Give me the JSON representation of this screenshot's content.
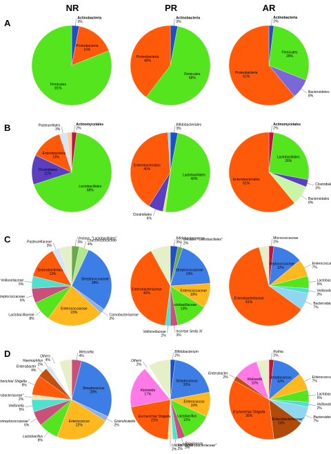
{
  "columns": [
    "NR",
    "PR",
    "AR"
  ],
  "panels": [
    "A",
    "B",
    "C",
    "D"
  ],
  "chart_data": [
    {
      "type": "pie",
      "panel": "A",
      "column": "NR",
      "slices": [
        {
          "label": "Actinobacteria",
          "value": 3,
          "pct": "3%",
          "color": "#1f4fc1",
          "bold": true
        },
        {
          "label": "Proteobacteria",
          "value": 16,
          "pct": "16%",
          "color": "#ff5a0a"
        },
        {
          "label": "Firmicutes",
          "value": 81,
          "pct": "81%",
          "color": "#55e51e"
        }
      ]
    },
    {
      "type": "pie",
      "panel": "A",
      "column": "PR",
      "slices": [
        {
          "label": "Actinobacteria",
          "value": 3,
          "pct": "3%",
          "color": "#1f4fc1",
          "bold": true
        },
        {
          "label": "Firmicutes",
          "value": 58,
          "pct": "58%",
          "color": "#55e51e"
        },
        {
          "label": "Proteobacteria",
          "value": 40,
          "pct": "40%",
          "color": "#ff5a0a"
        }
      ]
    },
    {
      "type": "pie",
      "panel": "A",
      "column": "AR",
      "slices": [
        {
          "label": "Actinobacteria",
          "value": 2,
          "pct": "2%",
          "color": "#1f4fc1",
          "bold": true
        },
        {
          "label": "Firmicutes",
          "value": 29,
          "pct": "29%",
          "color": "#55e51e"
        },
        {
          "label": "Bacteroidetes",
          "value": 8,
          "pct": "8%",
          "color": "#7a68d8"
        },
        {
          "label": "Proteobacteria",
          "value": 61,
          "pct": "61%",
          "color": "#ff5a0a"
        }
      ]
    },
    {
      "type": "pie",
      "panel": "B",
      "column": "NR",
      "slices": [
        {
          "label": "Actinomycetales",
          "value": 2,
          "pct": "2%",
          "color": "#c0143c",
          "bold": true
        },
        {
          "label": "Lactobacillales",
          "value": 68,
          "pct": "68%",
          "color": "#55e51e"
        },
        {
          "label": "Clostridiales",
          "value": 12,
          "pct": "12%",
          "color": "#5a3fc0"
        },
        {
          "label": "Enterobacteriales",
          "value": 13,
          "pct": "13%",
          "color": "#ff5a0a"
        },
        {
          "label": "Pasteurellales",
          "value": 3,
          "pct": "3%",
          "color": "#d6e6f5"
        },
        {
          "label": "",
          "value": 2,
          "pct": "",
          "color": "#f6cfa0"
        }
      ]
    },
    {
      "type": "pie",
      "panel": "B",
      "column": "PR",
      "slices": [
        {
          "label": "Bifidobacteriales",
          "value": 3,
          "pct": "3%",
          "color": "#1f4fc1"
        },
        {
          "label": "Lactobacillales",
          "value": 49,
          "pct": "49%",
          "color": "#55e51e"
        },
        {
          "label": "",
          "value": 1,
          "pct": "",
          "color": "#e8e27a"
        },
        {
          "label": "Clostridiales",
          "value": 6,
          "pct": "6%",
          "color": "#5a3fc0"
        },
        {
          "label": "Enterobacteriales",
          "value": 40,
          "pct": "40%",
          "color": "#ff5a0a"
        },
        {
          "label": "",
          "value": 1,
          "pct": "",
          "color": "#8fd6f0"
        }
      ]
    },
    {
      "type": "pie",
      "panel": "B",
      "column": "AR",
      "slices": [
        {
          "label": "Actinomycetales",
          "value": 2,
          "pct": "2%",
          "color": "#c0143c",
          "bold": true
        },
        {
          "label": "Lactobacillales",
          "value": 26,
          "pct": "26%",
          "color": "#55e51e"
        },
        {
          "label": "Clostridiales",
          "value": 3,
          "pct": "3%",
          "color": "#5a3fc0"
        },
        {
          "label": "Bacteroidales",
          "value": 8,
          "pct": "8%",
          "color": "#c8f5a8"
        },
        {
          "label": "Enterobacteriales",
          "value": 61,
          "pct": "61%",
          "color": "#ff5a0a"
        }
      ]
    },
    {
      "type": "pie",
      "panel": "C",
      "column": "NR",
      "slices": [
        {
          "label": "Unclass. \"Lactobacillales\"",
          "value": 3,
          "pct": "3%",
          "color": "#6aa84f"
        },
        {
          "label": "Leuconostocaceae",
          "value": 4,
          "pct": "4%",
          "color": "#b4e68c"
        },
        {
          "label": "Streptococcaceae",
          "value": 28,
          "pct": "28%",
          "color": "#3d7ee6"
        },
        {
          "label": "Carnobacteriaceae",
          "value": 2,
          "pct": "2%",
          "color": "#8fb0e0"
        },
        {
          "label": "Enterococcaceae",
          "value": 23,
          "pct": "23%",
          "color": "#ffb81e"
        },
        {
          "label": "Lactobacillaceae",
          "value": 8,
          "pct": "8%",
          "color": "#55e51e"
        },
        {
          "label": "Peptostreptococcaceae",
          "value": 6,
          "pct": "6%",
          "color": "#c8507a"
        },
        {
          "label": "Veillonellaceae",
          "value": 5,
          "pct": "5%",
          "color": "#4fe0d0"
        },
        {
          "label": "Enterobacteriaceae",
          "value": 13,
          "pct": "13%",
          "color": "#ff5a0a"
        },
        {
          "label": "Pasteurellaceae",
          "value": 3,
          "pct": "3%",
          "color": "#d6e6f5"
        },
        {
          "label": "",
          "value": 5,
          "pct": "",
          "color": "#e6f0c8"
        }
      ]
    },
    {
      "type": "pie",
      "panel": "C",
      "column": "PR",
      "slices": [
        {
          "label": "Bifidobacteriaceae",
          "value": 3,
          "pct": "3%",
          "color": "#1f4fc1"
        },
        {
          "label": "Unclass. \"Lactobacillales\"",
          "value": 2,
          "pct": "2%",
          "color": "#6aa84f"
        },
        {
          "label": "Streptococcaceae",
          "value": 19,
          "pct": "19%",
          "color": "#3d7ee6"
        },
        {
          "label": "Enterococcaceae",
          "value": 10,
          "pct": "10%",
          "color": "#ffb81e"
        },
        {
          "label": "Lactobacillaceae",
          "value": 13,
          "pct": "13%",
          "color": "#55e51e"
        },
        {
          "label": "Incertae Sedis XI",
          "value": 3,
          "pct": "3%",
          "color": "#c8507a"
        },
        {
          "label": "Veillonellaceae",
          "value": 2,
          "pct": "2%",
          "color": "#4fe0d0"
        },
        {
          "label": "Enterobacteriaceae",
          "value": 40,
          "pct": "40%",
          "color": "#ff5a0a"
        },
        {
          "label": "",
          "value": 8,
          "pct": "",
          "color": "#e6f0c8"
        }
      ]
    },
    {
      "type": "pie",
      "panel": "C",
      "column": "AR",
      "slices": [
        {
          "label": "Micrococcaceae",
          "value": 2,
          "pct": "2%",
          "color": "#c0143c"
        },
        {
          "label": "Streptococcaceae",
          "value": 12,
          "pct": "12%",
          "color": "#3d7ee6"
        },
        {
          "label": "Enterococcaceae",
          "value": 7,
          "pct": "7%",
          "color": "#ffb81e"
        },
        {
          "label": "Lactobacillaceae",
          "value": 5,
          "pct": "5%",
          "color": "#55e51e"
        },
        {
          "label": "Veillonellaceae",
          "value": 2,
          "pct": "2%",
          "color": "#4fe0d0"
        },
        {
          "label": "Bacteroidaceae",
          "value": 7,
          "pct": "7%",
          "color": "#8fd6f0"
        },
        {
          "label": "Enterobacteriaceae",
          "value": 61,
          "pct": "61%",
          "color": "#ff5a0a"
        },
        {
          "label": "",
          "value": 4,
          "pct": "",
          "color": "#e6f0c8"
        }
      ]
    },
    {
      "type": "pie",
      "panel": "D",
      "column": "NR",
      "slices": [
        {
          "label": "Weissella",
          "value": 4,
          "pct": "4%",
          "color": "#c8507a"
        },
        {
          "label": "Streptococcus",
          "value": 28,
          "pct": "28%",
          "color": "#3d7ee6"
        },
        {
          "label": "Granulicatella",
          "value": 2,
          "pct": "2%",
          "color": "#8fb0e0"
        },
        {
          "label": "Enterococcus",
          "value": 22,
          "pct": "22%",
          "color": "#ffb81e"
        },
        {
          "label": "Lactobacillus",
          "value": 8,
          "pct": "8%",
          "color": "#55e51e"
        },
        {
          "label": "Unclas. \"Peptostreptococcaceae\"",
          "value": 6,
          "pct": "6%",
          "color": "#c8507a"
        },
        {
          "label": "Veillonella",
          "value": 5,
          "pct": "5%",
          "color": "#4fe0d0"
        },
        {
          "label": "Unclas. \"Enterobacteriaceae\"",
          "value": 2,
          "pct": "2%",
          "color": "#ffe0b0"
        },
        {
          "label": "Escherichia/ Shigella",
          "value": 8,
          "pct": "8%",
          "color": "#ff5a0a"
        },
        {
          "label": "Enterobacter",
          "value": 4,
          "pct": "4%",
          "color": "#c05010"
        },
        {
          "label": "Haemophilus",
          "value": 2,
          "pct": "2%",
          "color": "#d6e6f5"
        },
        {
          "label": "Others",
          "value": 4,
          "pct": "4%",
          "color": "#ffffff"
        },
        {
          "label": "",
          "value": 5,
          "pct": "",
          "color": "#e6f0c8"
        }
      ]
    },
    {
      "type": "pie",
      "panel": "D",
      "column": "PR",
      "slices": [
        {
          "label": "Bifidobacterium",
          "value": 2,
          "pct": "2%",
          "color": "#1f4fc1"
        },
        {
          "label": "Streptococcus",
          "value": 20,
          "pct": "20%",
          "color": "#3d7ee6"
        },
        {
          "label": "Enterococcus",
          "value": 10,
          "pct": "10%",
          "color": "#ffb81e"
        },
        {
          "label": "Lactobacillus",
          "value": 12,
          "pct": "12%",
          "color": "#55e51e"
        },
        {
          "label": "Parvimonas",
          "value": 3,
          "pct": "3%",
          "color": "#c8507a"
        },
        {
          "label": "Veillonella",
          "value": 2,
          "pct": "2%",
          "color": "#4fe0d0"
        },
        {
          "label": "Unclas. \"Enterobacteriaceae\"",
          "value": 2,
          "pct": "2%",
          "color": "#ffe0b0"
        },
        {
          "label": "Escherichia/ Shigella",
          "value": 21,
          "pct": "21%",
          "color": "#ff5a0a"
        },
        {
          "label": "Klebsiella",
          "value": 17,
          "pct": "17%",
          "color": "#ff7ae6"
        },
        {
          "label": "Others",
          "value": 2,
          "pct": "2%",
          "color": "#ffffff"
        },
        {
          "label": "",
          "value": 9,
          "pct": "",
          "color": "#e6f0c8"
        }
      ]
    },
    {
      "type": "pie",
      "panel": "D",
      "column": "AR",
      "slices": [
        {
          "label": "Rothia",
          "value": 2,
          "pct": "2%",
          "color": "#c0143c"
        },
        {
          "label": "Streptococcus",
          "value": 12,
          "pct": "12%",
          "color": "#3d7ee6"
        },
        {
          "label": "Enterococcus",
          "value": 7,
          "pct": "7%",
          "color": "#ffb81e"
        },
        {
          "label": "Lactobacillus",
          "value": 5,
          "pct": "5%",
          "color": "#55e51e"
        },
        {
          "label": "Veillonella",
          "value": 2,
          "pct": "2%",
          "color": "#4fe0d0"
        },
        {
          "label": "Bacteroides",
          "value": 7,
          "pct": "7%",
          "color": "#8fd6f0"
        },
        {
          "label": "Unclas. \"Enterobacteriaceae\"",
          "value": 13,
          "pct": "13%",
          "color": "#b04a0a"
        },
        {
          "label": "Escherichia/ Shigella",
          "value": 35,
          "pct": "35%",
          "color": "#ff5a0a"
        },
        {
          "label": "Enterobacter",
          "value": 2,
          "pct": "2%",
          "color": "#c05010"
        },
        {
          "label": "Klebsiella",
          "value": 10,
          "pct": "10%",
          "color": "#ff7ae6"
        },
        {
          "label": "",
          "value": 5,
          "pct": "",
          "color": "#e6f0c8"
        }
      ]
    }
  ]
}
